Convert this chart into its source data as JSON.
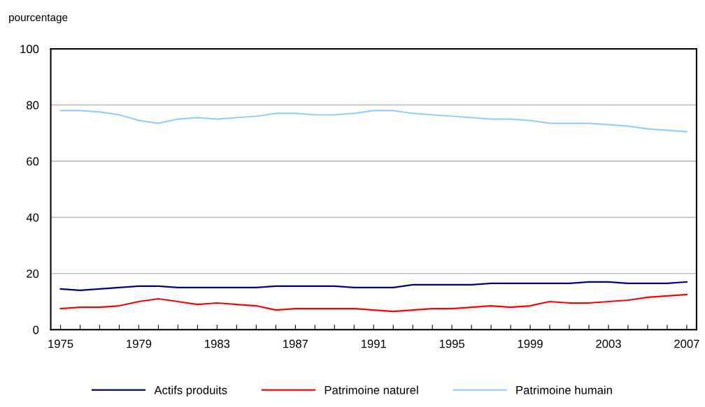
{
  "chart_data": {
    "type": "line",
    "ylabel": "pourcentage",
    "x": [
      1975,
      1976,
      1977,
      1978,
      1979,
      1980,
      1981,
      1982,
      1983,
      1984,
      1985,
      1986,
      1987,
      1988,
      1989,
      1990,
      1991,
      1992,
      1993,
      1994,
      1995,
      1996,
      1997,
      1998,
      1999,
      2000,
      2001,
      2002,
      2003,
      2004,
      2005,
      2006,
      2007
    ],
    "series": [
      {
        "name": "Actifs produits",
        "color": "#000080",
        "values": [
          14.5,
          14,
          14.5,
          15,
          15.5,
          15.5,
          15,
          15,
          15,
          15,
          15,
          15.5,
          15.5,
          15.5,
          15.5,
          15,
          15,
          15,
          16,
          16,
          16,
          16,
          16.5,
          16.5,
          16.5,
          16.5,
          16.5,
          17,
          17,
          16.5,
          16.5,
          16.5,
          17
        ]
      },
      {
        "name": "Patrimoine naturel",
        "color": "#ff0000",
        "values": [
          7.5,
          8,
          8,
          8.5,
          10,
          11,
          10,
          9,
          9.5,
          9,
          8.5,
          7,
          7.5,
          7.5,
          7.5,
          7.5,
          7,
          6.5,
          7,
          7.5,
          7.5,
          8,
          8.5,
          8,
          8.5,
          10,
          9.5,
          9.5,
          10,
          10.5,
          11.5,
          12,
          12.5
        ]
      },
      {
        "name": "Patrimoine humain",
        "color": "#99ccff",
        "values": [
          78,
          78,
          77.5,
          76.5,
          74.5,
          73.5,
          75,
          75.5,
          75,
          75.5,
          76,
          77,
          77,
          76.5,
          76.5,
          77,
          78,
          78,
          77,
          76.5,
          76,
          75.5,
          75,
          75,
          74.5,
          73.5,
          73.5,
          73.5,
          73,
          72.5,
          71.5,
          71,
          70.5
        ]
      }
    ],
    "xlim": [
      1974.5,
      2007.5
    ],
    "xticks": [
      1975,
      {
        "value": 1976,
        "label": null
      },
      {
        "value": 1977,
        "label": null
      },
      {
        "value": 1978,
        "label": null
      },
      1979,
      {
        "value": 1980,
        "label": null
      },
      {
        "value": 1981,
        "label": null
      },
      {
        "value": 1982,
        "label": null
      },
      1983,
      {
        "value": 1984,
        "label": null
      },
      {
        "value": 1985,
        "label": null
      },
      {
        "value": 1986,
        "label": null
      },
      1987,
      {
        "value": 1988,
        "label": null
      },
      {
        "value": 1989,
        "label": null
      },
      {
        "value": 1990,
        "label": null
      },
      1991,
      {
        "value": 1992,
        "label": null
      },
      {
        "value": 1993,
        "label": null
      },
      {
        "value": 1994,
        "label": null
      },
      1995,
      {
        "value": 1996,
        "label": null
      },
      {
        "value": 1997,
        "label": null
      },
      {
        "value": 1998,
        "label": null
      },
      1999,
      {
        "value": 2000,
        "label": null
      },
      {
        "value": 2001,
        "label": null
      },
      {
        "value": 2002,
        "label": null
      },
      2003,
      {
        "value": 2004,
        "label": null
      },
      {
        "value": 2005,
        "label": null
      },
      {
        "value": 2006,
        "label": null
      },
      2007
    ],
    "ylim": [
      0,
      100
    ],
    "yticks": [
      0,
      20,
      40,
      60,
      80,
      100
    ],
    "grid": "y",
    "legend": "bottom",
    "marker": "none",
    "line_style": "solid"
  }
}
